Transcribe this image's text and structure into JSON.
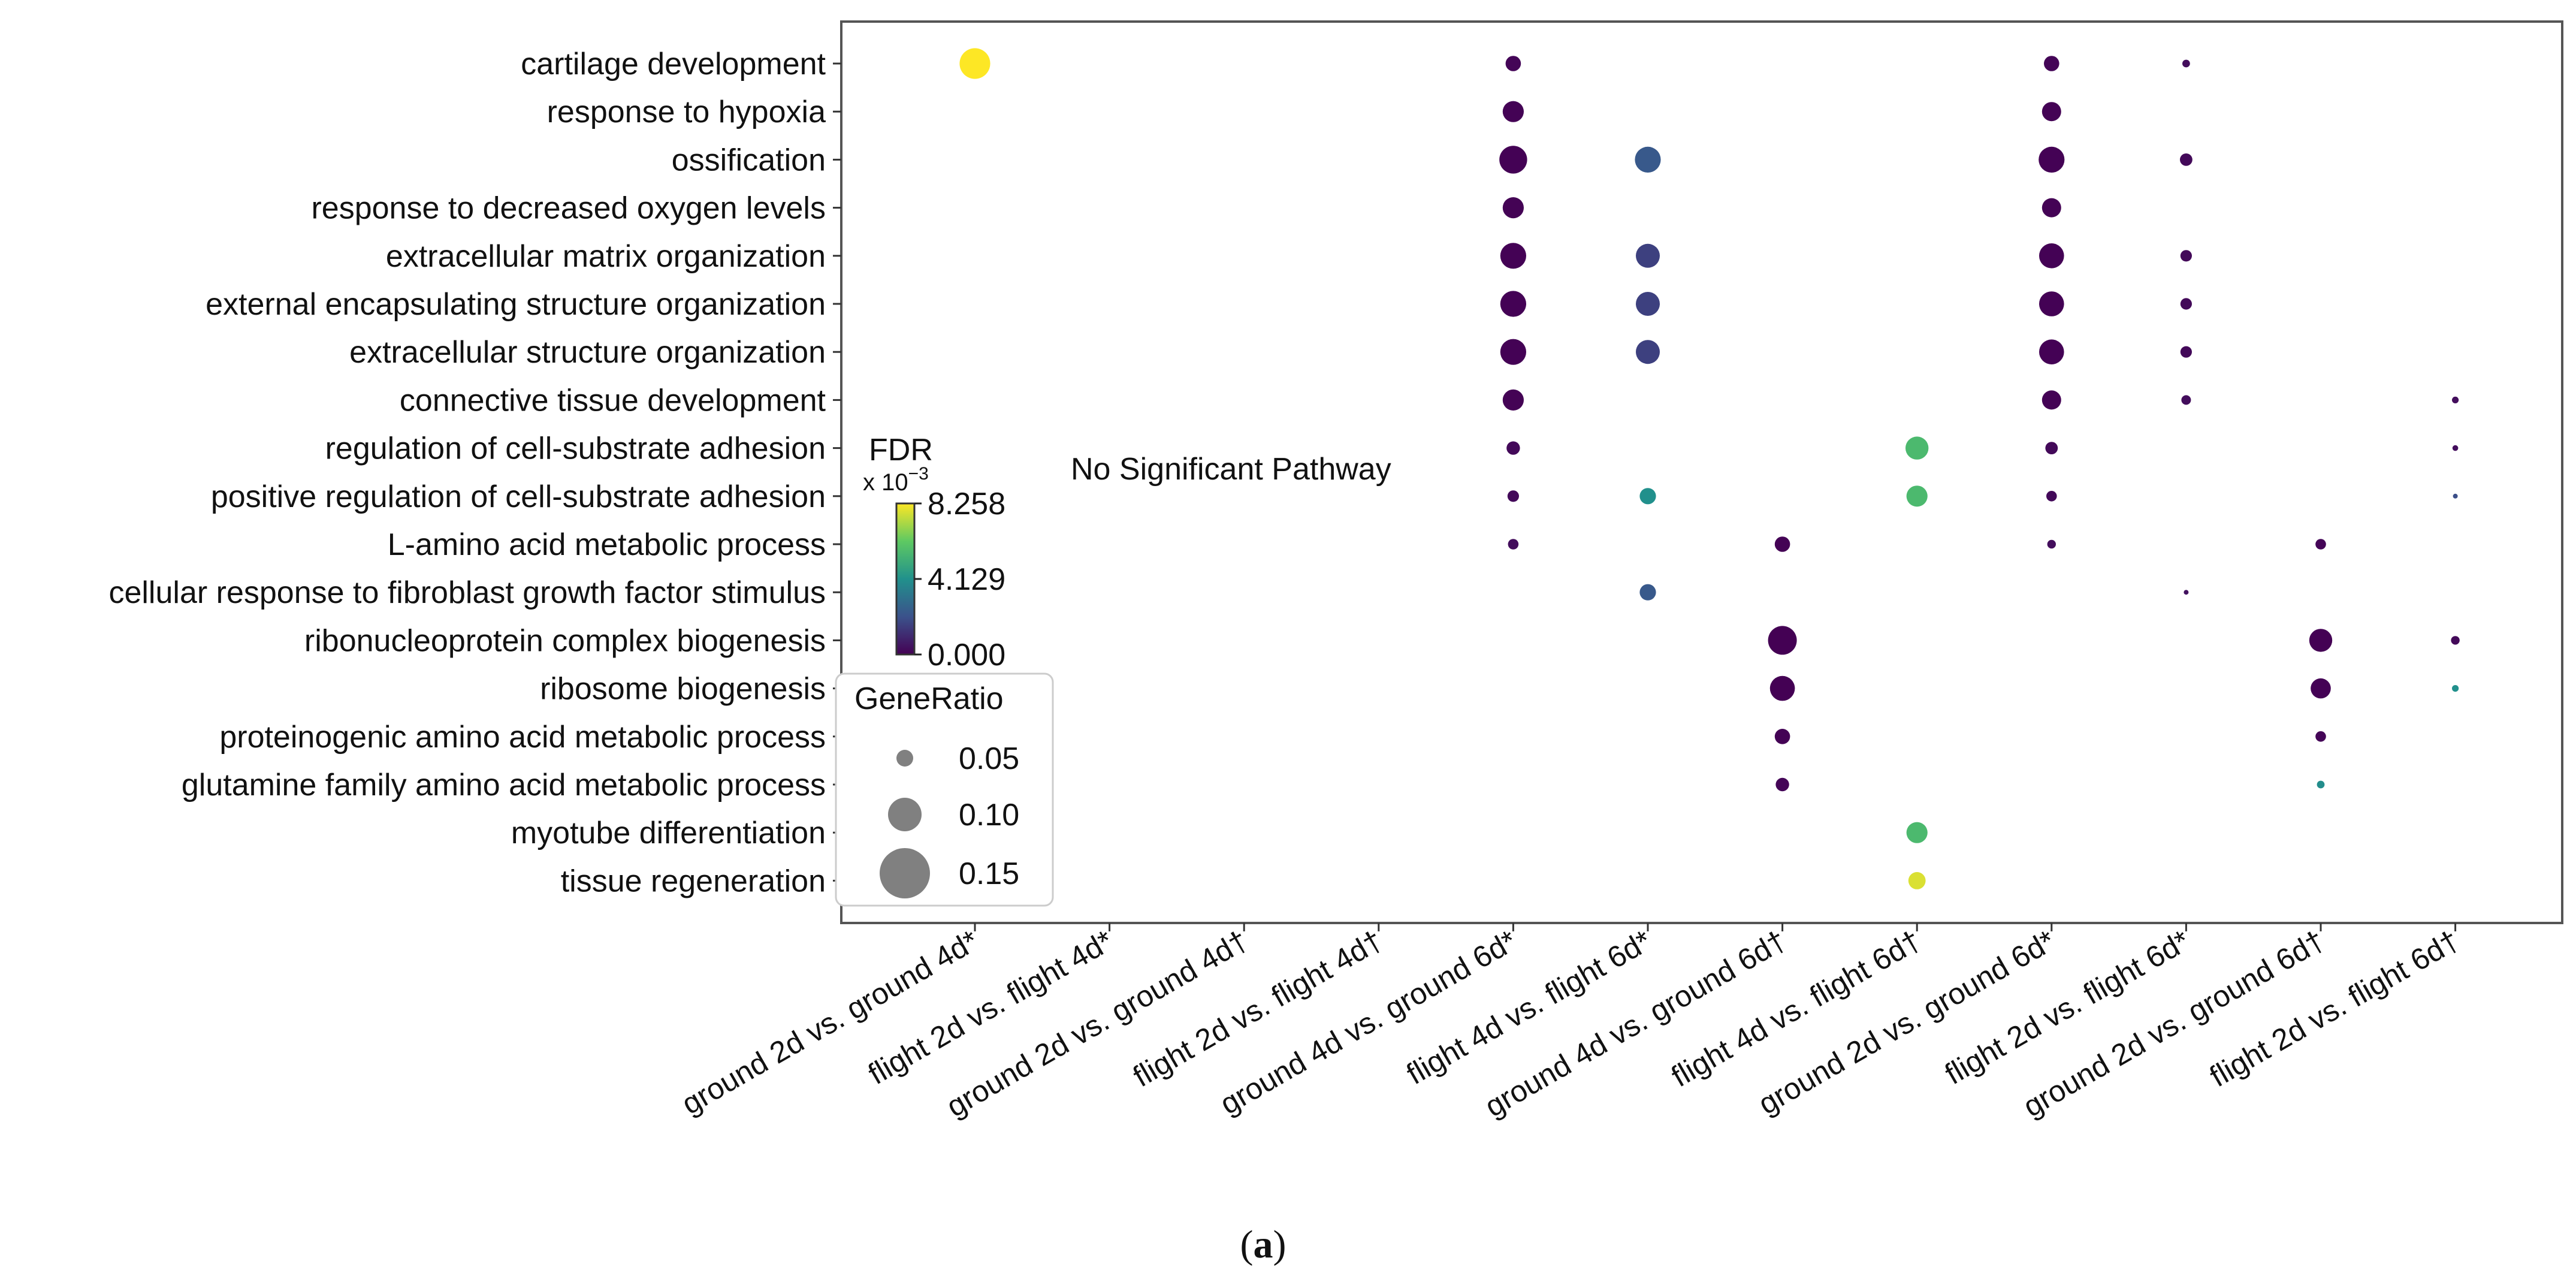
{
  "chart_data": {
    "type": "scatter",
    "subtype": "bubble",
    "panel_label": "(a)",
    "annotation": "No Significant Pathway",
    "x_categories": [
      "ground 2d vs. ground 4d*",
      "flight 2d vs. flight 4d*",
      "ground 2d vs. ground 4d†",
      "flight 2d vs. flight 4d†",
      "ground 4d vs. ground 6d*",
      "flight 4d vs. flight 6d*",
      "ground 4d vs. ground 6d†",
      "flight 4d vs. flight 6d†",
      "ground 2d vs. ground 6d*",
      "flight 2d vs. flight 6d*",
      "ground 2d vs. ground 6d†",
      "flight 2d vs. flight 6d†"
    ],
    "y_categories": [
      "cartilage development",
      "response to hypoxia",
      "ossification",
      "response to decreased oxygen levels",
      "extracellular matrix organization",
      "external encapsulating structure organization",
      "extracellular structure organization",
      "connective tissue development",
      "regulation of cell-substrate adhesion",
      "positive regulation of cell-substrate adhesion",
      "L-amino acid metabolic process",
      "cellular response to fibroblast growth factor stimulus",
      "ribonucleoprotein complex biogenesis",
      "ribosome biogenesis",
      "proteinogenic amino acid metabolic process",
      "glutamine family amino acid metabolic process",
      "myotube differentiation",
      "tissue regeneration"
    ],
    "colorbar": {
      "title": "FDR",
      "multiplier": "x 10",
      "exponent": "−3",
      "ticks": [
        "8.258",
        "4.129",
        "0.000"
      ],
      "min": 0.0,
      "max": 8.258,
      "colormap": [
        "#440154",
        "#3b528b",
        "#21918c",
        "#5ec962",
        "#fde725"
      ]
    },
    "size_legend": {
      "title": "GeneRatio",
      "labels": [
        "0.05",
        "0.10",
        "0.15"
      ],
      "values": [
        0.05,
        0.1,
        0.15
      ]
    },
    "points": [
      {
        "x": "ground 2d vs. ground 4d*",
        "y": "cartilage development",
        "gene_ratio": 0.16,
        "fdr": 8.258
      },
      {
        "x": "ground 4d vs. ground 6d*",
        "y": "cartilage development",
        "gene_ratio": 0.08,
        "fdr": 0.1
      },
      {
        "x": "ground 4d vs. ground 6d*",
        "y": "response to hypoxia",
        "gene_ratio": 0.11,
        "fdr": 0.05
      },
      {
        "x": "ground 4d vs. ground 6d*",
        "y": "ossification",
        "gene_ratio": 0.145,
        "fdr": 0.02
      },
      {
        "x": "ground 4d vs. ground 6d*",
        "y": "response to decreased oxygen levels",
        "gene_ratio": 0.11,
        "fdr": 0.05
      },
      {
        "x": "ground 4d vs. ground 6d*",
        "y": "extracellular matrix organization",
        "gene_ratio": 0.135,
        "fdr": 0.02
      },
      {
        "x": "ground 4d vs. ground 6d*",
        "y": "external encapsulating structure organization",
        "gene_ratio": 0.135,
        "fdr": 0.02
      },
      {
        "x": "ground 4d vs. ground 6d*",
        "y": "extracellular structure organization",
        "gene_ratio": 0.135,
        "fdr": 0.02
      },
      {
        "x": "ground 4d vs. ground 6d*",
        "y": "connective tissue development",
        "gene_ratio": 0.11,
        "fdr": 0.05
      },
      {
        "x": "ground 4d vs. ground 6d*",
        "y": "regulation of cell-substrate adhesion",
        "gene_ratio": 0.07,
        "fdr": 0.2
      },
      {
        "x": "ground 4d vs. ground 6d*",
        "y": "positive regulation of cell-substrate adhesion",
        "gene_ratio": 0.06,
        "fdr": 0.2
      },
      {
        "x": "ground 4d vs. ground 6d*",
        "y": "L-amino acid metabolic process",
        "gene_ratio": 0.055,
        "fdr": 0.3
      },
      {
        "x": "flight 4d vs. flight 6d*",
        "y": "ossification",
        "gene_ratio": 0.135,
        "fdr": 2.3
      },
      {
        "x": "flight 4d vs. flight 6d*",
        "y": "extracellular matrix organization",
        "gene_ratio": 0.125,
        "fdr": 1.6
      },
      {
        "x": "flight 4d vs. flight 6d*",
        "y": "external encapsulating structure organization",
        "gene_ratio": 0.125,
        "fdr": 1.6
      },
      {
        "x": "flight 4d vs. flight 6d*",
        "y": "extracellular structure organization",
        "gene_ratio": 0.125,
        "fdr": 1.6
      },
      {
        "x": "flight 4d vs. flight 6d*",
        "y": "positive regulation of cell-substrate adhesion",
        "gene_ratio": 0.085,
        "fdr": 4.1
      },
      {
        "x": "flight 4d vs. flight 6d*",
        "y": "cellular response to fibroblast growth factor stimulus",
        "gene_ratio": 0.085,
        "fdr": 2.3
      },
      {
        "x": "ground 4d vs. ground 6d†",
        "y": "L-amino acid metabolic process",
        "gene_ratio": 0.08,
        "fdr": 0.05
      },
      {
        "x": "ground 4d vs. ground 6d†",
        "y": "ribonucleoprotein complex biogenesis",
        "gene_ratio": 0.15,
        "fdr": 0.01
      },
      {
        "x": "ground 4d vs. ground 6d†",
        "y": "ribosome biogenesis",
        "gene_ratio": 0.13,
        "fdr": 0.01
      },
      {
        "x": "ground 4d vs. ground 6d†",
        "y": "proteinogenic amino acid metabolic process",
        "gene_ratio": 0.08,
        "fdr": 0.05
      },
      {
        "x": "ground 4d vs. ground 6d†",
        "y": "glutamine family amino acid metabolic process",
        "gene_ratio": 0.07,
        "fdr": 0.1
      },
      {
        "x": "flight 4d vs. flight 6d†",
        "y": "regulation of cell-substrate adhesion",
        "gene_ratio": 0.12,
        "fdr": 5.6
      },
      {
        "x": "flight 4d vs. flight 6d†",
        "y": "positive regulation of cell-substrate adhesion",
        "gene_ratio": 0.11,
        "fdr": 5.6
      },
      {
        "x": "flight 4d vs. flight 6d†",
        "y": "myotube differentiation",
        "gene_ratio": 0.11,
        "fdr": 5.6
      },
      {
        "x": "flight 4d vs. flight 6d†",
        "y": "tissue regeneration",
        "gene_ratio": 0.09,
        "fdr": 7.8
      },
      {
        "x": "ground 2d vs. ground 6d*",
        "y": "cartilage development",
        "gene_ratio": 0.08,
        "fdr": 0.1
      },
      {
        "x": "ground 2d vs. ground 6d*",
        "y": "response to hypoxia",
        "gene_ratio": 0.1,
        "fdr": 0.05
      },
      {
        "x": "ground 2d vs. ground 6d*",
        "y": "ossification",
        "gene_ratio": 0.135,
        "fdr": 0.02
      },
      {
        "x": "ground 2d vs. ground 6d*",
        "y": "response to decreased oxygen levels",
        "gene_ratio": 0.1,
        "fdr": 0.05
      },
      {
        "x": "ground 2d vs. ground 6d*",
        "y": "extracellular matrix organization",
        "gene_ratio": 0.13,
        "fdr": 0.02
      },
      {
        "x": "ground 2d vs. ground 6d*",
        "y": "external encapsulating structure organization",
        "gene_ratio": 0.13,
        "fdr": 0.02
      },
      {
        "x": "ground 2d vs. ground 6d*",
        "y": "extracellular structure organization",
        "gene_ratio": 0.13,
        "fdr": 0.02
      },
      {
        "x": "ground 2d vs. ground 6d*",
        "y": "connective tissue development",
        "gene_ratio": 0.1,
        "fdr": 0.05
      },
      {
        "x": "ground 2d vs. ground 6d*",
        "y": "regulation of cell-substrate adhesion",
        "gene_ratio": 0.065,
        "fdr": 0.2
      },
      {
        "x": "ground 2d vs. ground 6d*",
        "y": "positive regulation of cell-substrate adhesion",
        "gene_ratio": 0.055,
        "fdr": 0.2
      },
      {
        "x": "ground 2d vs. ground 6d*",
        "y": "L-amino acid metabolic process",
        "gene_ratio": 0.045,
        "fdr": 0.3
      },
      {
        "x": "flight 2d vs. flight 6d*",
        "y": "cartilage development",
        "gene_ratio": 0.04,
        "fdr": 0.3
      },
      {
        "x": "flight 2d vs. flight 6d*",
        "y": "ossification",
        "gene_ratio": 0.065,
        "fdr": 0.2
      },
      {
        "x": "flight 2d vs. flight 6d*",
        "y": "extracellular matrix organization",
        "gene_ratio": 0.06,
        "fdr": 0.2
      },
      {
        "x": "flight 2d vs. flight 6d*",
        "y": "external encapsulating structure organization",
        "gene_ratio": 0.06,
        "fdr": 0.2
      },
      {
        "x": "flight 2d vs. flight 6d*",
        "y": "extracellular structure organization",
        "gene_ratio": 0.06,
        "fdr": 0.2
      },
      {
        "x": "flight 2d vs. flight 6d*",
        "y": "connective tissue development",
        "gene_ratio": 0.05,
        "fdr": 0.3
      },
      {
        "x": "flight 2d vs. flight 6d*",
        "y": "cellular response to fibroblast growth factor stimulus",
        "gene_ratio": 0.025,
        "fdr": 0.4
      },
      {
        "x": "ground 2d vs. ground 6d†",
        "y": "L-amino acid metabolic process",
        "gene_ratio": 0.055,
        "fdr": 0.1
      },
      {
        "x": "ground 2d vs. ground 6d†",
        "y": "ribonucleoprotein complex biogenesis",
        "gene_ratio": 0.12,
        "fdr": 0.01
      },
      {
        "x": "ground 2d vs. ground 6d†",
        "y": "ribosome biogenesis",
        "gene_ratio": 0.105,
        "fdr": 0.02
      },
      {
        "x": "ground 2d vs. ground 6d†",
        "y": "proteinogenic amino acid metabolic process",
        "gene_ratio": 0.055,
        "fdr": 0.1
      },
      {
        "x": "ground 2d vs. ground 6d†",
        "y": "glutamine family amino acid metabolic process",
        "gene_ratio": 0.04,
        "fdr": 4.0
      },
      {
        "x": "flight 2d vs. flight 6d†",
        "y": "connective tissue development",
        "gene_ratio": 0.035,
        "fdr": 0.3
      },
      {
        "x": "flight 2d vs. flight 6d†",
        "y": "regulation of cell-substrate adhesion",
        "gene_ratio": 0.03,
        "fdr": 0.3
      },
      {
        "x": "flight 2d vs. flight 6d†",
        "y": "positive regulation of cell-substrate adhesion",
        "gene_ratio": 0.025,
        "fdr": 2.0
      },
      {
        "x": "flight 2d vs. flight 6d†",
        "y": "ribonucleoprotein complex biogenesis",
        "gene_ratio": 0.045,
        "fdr": 0.2
      },
      {
        "x": "flight 2d vs. flight 6d†",
        "y": "ribosome biogenesis",
        "gene_ratio": 0.035,
        "fdr": 4.1
      }
    ]
  }
}
